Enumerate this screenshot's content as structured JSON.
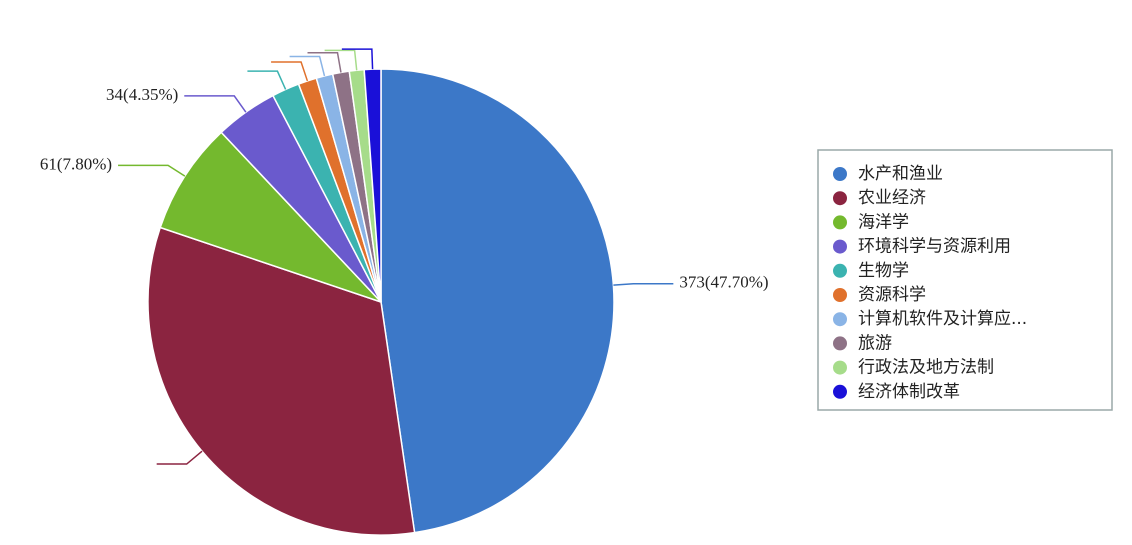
{
  "chart_data": {
    "type": "pie",
    "categories": [
      "水产和渔业",
      "农业经济",
      "海洋学",
      "环境科学与资源利用",
      "生物学",
      "资源科学",
      "计算机软件及计算应...",
      "旅游",
      "行政法及地方法制",
      "经济体制改革"
    ],
    "values": [
      373,
      254,
      61,
      34,
      15,
      10,
      9,
      9,
      8,
      9
    ],
    "value_labels": [
      "373(47.70%)",
      null,
      "61(7.80%)",
      "34(4.35%)",
      null,
      null,
      null,
      null,
      null,
      null
    ],
    "colors": [
      "#3c78c8",
      "#8b2440",
      "#74b92e",
      "#6a5acd",
      "#3bb3b0",
      "#e0712c",
      "#8ab4e6",
      "#8e7286",
      "#a6dc8a",
      "#1a10d8"
    ]
  }
}
